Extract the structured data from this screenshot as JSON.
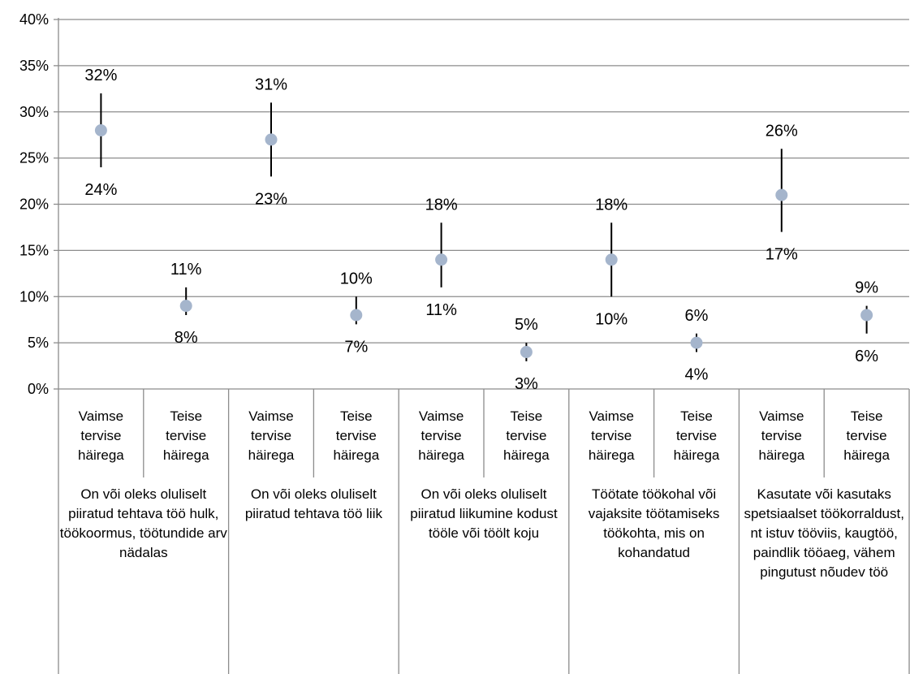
{
  "chart_data": {
    "type": "scatter",
    "ylim": [
      0,
      40
    ],
    "y_ticks": [
      "0%",
      "5%",
      "10%",
      "15%",
      "20%",
      "25%",
      "30%",
      "35%",
      "40%"
    ],
    "grid": true,
    "groups": [
      "On või oleks oluliselt piiratud tehtava töö hulk, töökoormus, töötundide arv nädalas",
      "On või oleks oluliselt piiratud tehtava töö liik",
      "On või oleks oluliselt piiratud liikumine kodust tööle või töölt koju",
      "Töötate töökohal või vajaksite töötamiseks töökohta, mis on kohandatud",
      "Kasutate või kasutaks spetsiaalset töökorraldust, nt istuv tööviis, kaugtöö, paindlik tööaeg, vähem pingutust nõudev töö"
    ],
    "subcategories": [
      "Vaimse tervise häirega",
      "Teise tervise häirega"
    ],
    "points": [
      {
        "value": 28,
        "low": 24,
        "high": 32,
        "low_label": "24%",
        "high_label": "32%"
      },
      {
        "value": 9,
        "low": 8,
        "high": 11,
        "low_label": "8%",
        "high_label": "11%"
      },
      {
        "value": 27,
        "low": 23,
        "high": 31,
        "low_label": "23%",
        "high_label": "31%"
      },
      {
        "value": 8,
        "low": 7,
        "high": 10,
        "low_label": "7%",
        "high_label": "10%"
      },
      {
        "value": 14,
        "low": 11,
        "high": 18,
        "low_label": "11%",
        "high_label": "18%"
      },
      {
        "value": 4,
        "low": 3,
        "high": 5,
        "low_label": "3%",
        "high_label": "5%"
      },
      {
        "value": 14,
        "low": 10,
        "high": 18,
        "low_label": "10%",
        "high_label": "18%"
      },
      {
        "value": 5,
        "low": 4,
        "high": 6,
        "low_label": "4%",
        "high_label": "6%"
      },
      {
        "value": 21,
        "low": 17,
        "high": 26,
        "low_label": "17%",
        "high_label": "26%"
      },
      {
        "value": 8,
        "low": 6,
        "high": 9,
        "low_label": "6%",
        "high_label": "9%"
      }
    ]
  }
}
